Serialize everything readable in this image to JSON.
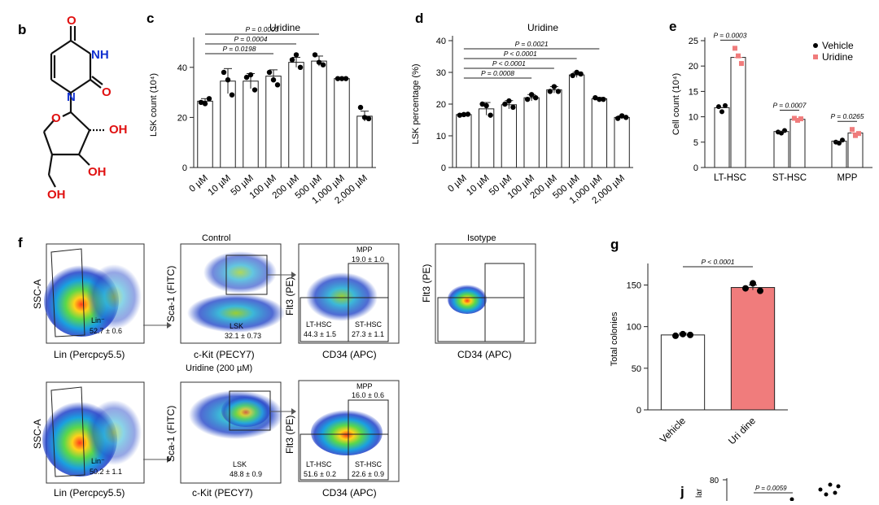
{
  "panels": {
    "b": "b",
    "c": "c",
    "d": "d",
    "e": "e",
    "f": "f",
    "g": "g",
    "j": "j"
  },
  "chemistry": {
    "atoms": [
      "O",
      "NH",
      "O",
      "N",
      "O",
      "OH",
      "OH",
      "OH"
    ]
  },
  "chart_data": [
    {
      "id": "c",
      "type": "bar",
      "title": "Uridine",
      "ylabel": "LSK count (10⁴)",
      "ylim": [
        0,
        50
      ],
      "yticks": [
        0,
        20,
        40
      ],
      "categories": [
        "0 µM",
        "10 µM",
        "50 µM",
        "100 µM",
        "200 µM",
        "500 µM",
        "1,000 µM",
        "2,000 µM"
      ],
      "values": [
        26.5,
        34.5,
        34.5,
        36.5,
        42,
        42.5,
        35.5,
        20.5
      ],
      "errors": [
        1,
        5,
        3,
        2.5,
        2,
        2,
        0.3,
        2
      ],
      "points": [
        [
          26,
          25.5,
          27.5
        ],
        [
          38,
          35,
          29
        ],
        [
          36,
          37,
          31
        ],
        [
          38,
          35,
          33
        ],
        [
          43,
          45,
          40
        ],
        [
          45,
          42,
          41
        ],
        [
          35.5,
          35.5,
          35.5
        ],
        [
          24,
          20,
          19.5
        ]
      ],
      "annotations": [
        {
          "label": "P = 0.0003",
          "from": 0,
          "to": 5
        },
        {
          "label": "P = 0.0004",
          "from": 0,
          "to": 4
        },
        {
          "label": "P = 0.0198",
          "from": 0,
          "to": 3
        }
      ]
    },
    {
      "id": "d",
      "type": "bar",
      "title": "Uridine",
      "ylabel": "LSK percentage (%)",
      "ylim": [
        0,
        40
      ],
      "yticks": [
        0,
        10,
        20,
        30,
        40
      ],
      "categories": [
        "0 µM",
        "10 µM",
        "50 µM",
        "100 µM",
        "200 µM",
        "500 µM",
        "1,000 µM",
        "2,000 µM"
      ],
      "values": [
        16.7,
        18.5,
        19.8,
        22,
        24.5,
        29.2,
        21.7,
        15.8
      ],
      "errors": [
        0.3,
        2,
        1.3,
        1,
        1,
        0.8,
        0.4,
        0.5
      ],
      "points": [
        [
          16.5,
          16.7,
          16.8
        ],
        [
          20,
          19.5,
          16.5
        ],
        [
          20,
          21,
          19
        ],
        [
          21.5,
          23,
          22
        ],
        [
          24,
          25.5,
          24
        ],
        [
          29,
          30,
          29.5
        ],
        [
          22,
          21.5,
          21.5
        ],
        [
          15.5,
          16.3,
          15.8
        ]
      ],
      "annotations": [
        {
          "label": "P = 0.0021",
          "from": 0,
          "to": 6
        },
        {
          "label": "P < 0.0001",
          "from": 0,
          "to": 5
        },
        {
          "label": "P < 0.0001",
          "from": 0,
          "to": 4
        },
        {
          "label": "P = 0.0008",
          "from": 0,
          "to": 3
        }
      ]
    },
    {
      "id": "e",
      "type": "bar",
      "ylabel": "Cell count (10⁴)",
      "ylim": [
        0,
        25
      ],
      "yticks": [
        0,
        5,
        10,
        15,
        20,
        25
      ],
      "categories": [
        "LT-HSC",
        "ST-HSC",
        "MPP"
      ],
      "series": [
        {
          "name": "Vehicle",
          "color": "#000000",
          "values": [
            11.8,
            7.1,
            5.2
          ],
          "points": [
            [
              12,
              11,
              12.2
            ],
            [
              7,
              6.8,
              7.3
            ],
            [
              5,
              4.8,
              5.4
            ]
          ]
        },
        {
          "name": "Uridine",
          "color": "#f07c7c",
          "values": [
            21.7,
            9.5,
            6.8
          ],
          "points": [
            [
              23.5,
              22,
              20.5
            ],
            [
              9.7,
              9.3,
              9.6
            ],
            [
              7.5,
              6.3,
              6.7
            ]
          ]
        }
      ],
      "annotations": [
        "P = 0.0003",
        "P = 0.0007",
        "P = 0.0265"
      ]
    },
    {
      "id": "g",
      "type": "bar",
      "ylabel": "Total colonies",
      "ylim": [
        0,
        170
      ],
      "yticks": [
        0,
        50,
        100,
        150
      ],
      "categories": [
        "Vehicle",
        "Uri dine"
      ],
      "values": [
        90,
        147
      ],
      "errors": [
        2,
        3
      ],
      "colors": [
        "#ffffff",
        "#f07c7c"
      ],
      "points": [
        [
          89,
          91,
          90
        ],
        [
          146,
          152,
          143
        ]
      ],
      "annotations": [
        "P < 0.0001"
      ]
    },
    {
      "id": "j",
      "type": "scatter",
      "ylabel": "lar",
      "ytick_shown": "80",
      "annotations": [
        "P = 0.0059"
      ]
    }
  ],
  "flow": {
    "control_label": "Control",
    "isotype_label": "Isotype",
    "uridine_label": "Uridine (200 µM)",
    "row1": {
      "lin": {
        "y": "SSC-A",
        "x": "Lin (Percpcy5.5)",
        "gate": "Lin⁻",
        "value": "52.7 ± 0.6"
      },
      "lsk": {
        "y": "Sca-1 (FITC)",
        "x": "c-Kit (PECY7)",
        "gate": "LSK",
        "value": "32.1 ± 0.73"
      },
      "hsc": {
        "y": "Flt3 (PE)",
        "x": "CD34 (APC)",
        "mpp": "MPP",
        "mpp_v": "19.0 ± 1.0",
        "lt": "LT-HSC",
        "lt_v": "44.3 ± 1.5",
        "st": "ST-HSC",
        "st_v": "27.3 ± 1.1"
      },
      "iso": {
        "y": "Flt3 (PE)",
        "x": "CD34 (APC)"
      }
    },
    "row2": {
      "lin": {
        "y": "SSC-A",
        "x": "Lin (Percpcy5.5)",
        "gate": "Lin⁻",
        "value": "50.2 ± 1.1"
      },
      "lsk": {
        "y": "Sca-1 (FITC)",
        "x": "c-Kit (PECY7)",
        "gate": "LSK",
        "value": "48.8 ± 0.9"
      },
      "hsc": {
        "y": "Flt3 (PE)",
        "x": "CD34 (APC)",
        "mpp": "MPP",
        "mpp_v": "16.0 ± 0.6",
        "lt": "LT-HSC",
        "lt_v": "51.6 ± 0.2",
        "st": "ST-HSC",
        "st_v": "22.6 ± 0.9"
      }
    }
  }
}
